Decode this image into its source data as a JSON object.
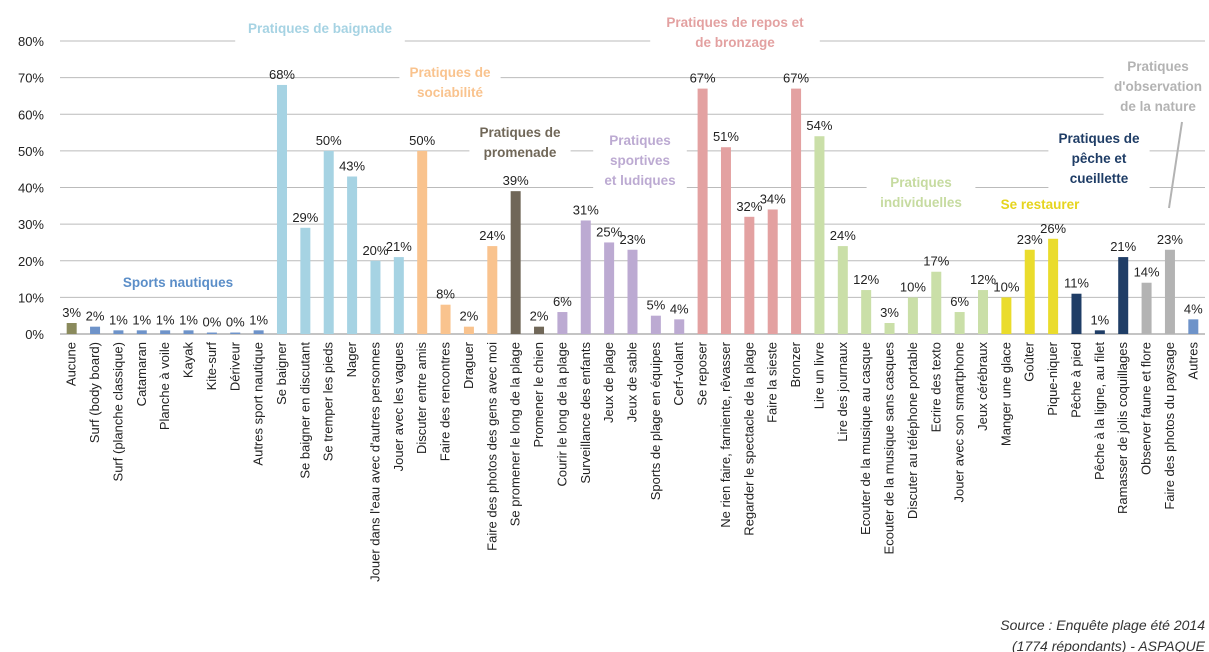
{
  "chart_data": {
    "type": "bar",
    "categories": [
      "Aucune",
      "Surf (body board)",
      "Surf (planche classique)",
      "Catamaran",
      "Planche à voile",
      "Kayak",
      "Kite-surf",
      "Dériveur",
      "Autres sport nautique",
      "Se baigner",
      "Se baigner en discutant",
      "Se tremper les pieds",
      "Nager",
      "Jouer dans l'eau avec d'autres personnes",
      "Jouer avec les vagues",
      "Discuter entre amis",
      "Faire des rencontres",
      "Draguer",
      "Faire des photos des gens avec moi",
      "Se promener le long de la plage",
      "Promener le chien",
      "Courir le long de la plage",
      "Surveillance des enfants",
      "Jeux de plage",
      "Jeux de sable",
      "Sports de plage en équipes",
      "Cerf-volant",
      "Se reposer",
      "Ne rien faire, farniente, rêvasser",
      "Regarder le spectacle de la plage",
      "Faire la sieste",
      "Bronzer",
      "Lire un livre",
      "Lire des journaux",
      "Ecouter de la musique au casque",
      "Ecouter de la musique sans casques",
      "Discuter au téléphone portable",
      "Ecrire des texto",
      "Jouer avec son smartphone",
      "Jeux cérébraux",
      "Manger une glace",
      "Goûter",
      "Pique-niquer",
      "Pêche à pied",
      "Pêche à la ligne, au filet",
      "Ramasser de jolis coquillages",
      "Observer faune et flore",
      "Faire des photos du paysage",
      "Autres"
    ],
    "values": [
      3,
      2,
      1,
      1,
      1,
      1,
      0.4,
      0.4,
      1,
      68,
      29,
      50,
      43,
      20,
      21,
      50,
      8,
      2,
      24,
      39,
      2,
      6,
      31,
      25,
      23,
      5,
      4,
      67,
      51,
      32,
      34,
      67,
      54,
      24,
      12,
      3,
      10,
      17,
      6,
      12,
      10,
      23,
      26,
      11,
      1,
      21,
      14,
      23,
      4
    ],
    "value_labels": [
      "3%",
      "2%",
      "1%",
      "1%",
      "1%",
      "1%",
      "0%",
      "0%",
      "1%",
      "68%",
      "29%",
      "50%",
      "43%",
      "20%",
      "21%",
      "50%",
      "8%",
      "2%",
      "24%",
      "39%",
      "2%",
      "6%",
      "31%",
      "25%",
      "23%",
      "5%",
      "4%",
      "67%",
      "51%",
      "32%",
      "34%",
      "67%",
      "54%",
      "24%",
      "12%",
      "3%",
      "10%",
      "17%",
      "6%",
      "12%",
      "10%",
      "23%",
      "26%",
      "11%",
      "1%",
      "21%",
      "14%",
      "23%",
      "4%"
    ],
    "colors": [
      "#8a8a5c",
      "#6e93c9",
      "#6e93c9",
      "#6e93c9",
      "#6e93c9",
      "#6e93c9",
      "#6e93c9",
      "#6e93c9",
      "#6e93c9",
      "#a6d3e3",
      "#a6d3e3",
      "#a6d3e3",
      "#a6d3e3",
      "#a6d3e3",
      "#a6d3e3",
      "#f9c38e",
      "#f9c38e",
      "#f9c38e",
      "#f9c38e",
      "#706758",
      "#706758",
      "#bcaad2",
      "#bcaad2",
      "#bcaad2",
      "#bcaad2",
      "#bcaad2",
      "#bcaad2",
      "#e3a1a1",
      "#e3a1a1",
      "#e3a1a1",
      "#e3a1a1",
      "#e3a1a1",
      "#cadfa8",
      "#cadfa8",
      "#cadfa8",
      "#cadfa8",
      "#cadfa8",
      "#cadfa8",
      "#cadfa8",
      "#cadfa8",
      "#eadc2c",
      "#eadc2c",
      "#eadc2c",
      "#1f3d66",
      "#1f3d66",
      "#1f3d66",
      "#b3b3b3",
      "#b3b3b3",
      "#6e93c9"
    ],
    "ylim": [
      0,
      80
    ],
    "yticks": [
      {
        "value": 0,
        "label": "0%"
      },
      {
        "value": 10,
        "label": "10%"
      },
      {
        "value": 20,
        "label": "20%"
      },
      {
        "value": 30,
        "label": "30%"
      },
      {
        "value": 40,
        "label": "40%"
      },
      {
        "value": 50,
        "label": "50%"
      },
      {
        "value": 60,
        "label": "60%"
      },
      {
        "value": 70,
        "label": "70%"
      },
      {
        "value": 80,
        "label": "80%"
      }
    ],
    "grid": true,
    "annotations": [
      {
        "lines": [
          "Sports nautiques"
        ],
        "color": "#5b8ec8"
      },
      {
        "lines": [
          "Pratiques de baignade"
        ],
        "color": "#a6d3e3"
      },
      {
        "lines": [
          "Pratiques de",
          "sociabilité"
        ],
        "color": "#f9c38e"
      },
      {
        "lines": [
          "Pratiques de",
          "promenade"
        ],
        "color": "#706758"
      },
      {
        "lines": [
          "Pratiques",
          "sportives",
          "et ludiques"
        ],
        "color": "#bcaad2"
      },
      {
        "lines": [
          "Pratiques de repos et",
          "de bronzage"
        ],
        "color": "#e3a1a1"
      },
      {
        "lines": [
          "Pratiques",
          "individuelles"
        ],
        "color": "#c6dba0"
      },
      {
        "lines": [
          "Se restaurer"
        ],
        "color": "#e6d41e"
      },
      {
        "lines": [
          "Pratiques de",
          "pêche et",
          "cueillette"
        ],
        "color": "#1f3d66"
      },
      {
        "lines": [
          "Pratiques",
          "d'observation",
          "de la nature"
        ],
        "color": "#b3b3b3"
      }
    ],
    "source": [
      "Source : Enquête plage été 2014",
      "(1774 répondants) - ASPAQUE"
    ]
  }
}
